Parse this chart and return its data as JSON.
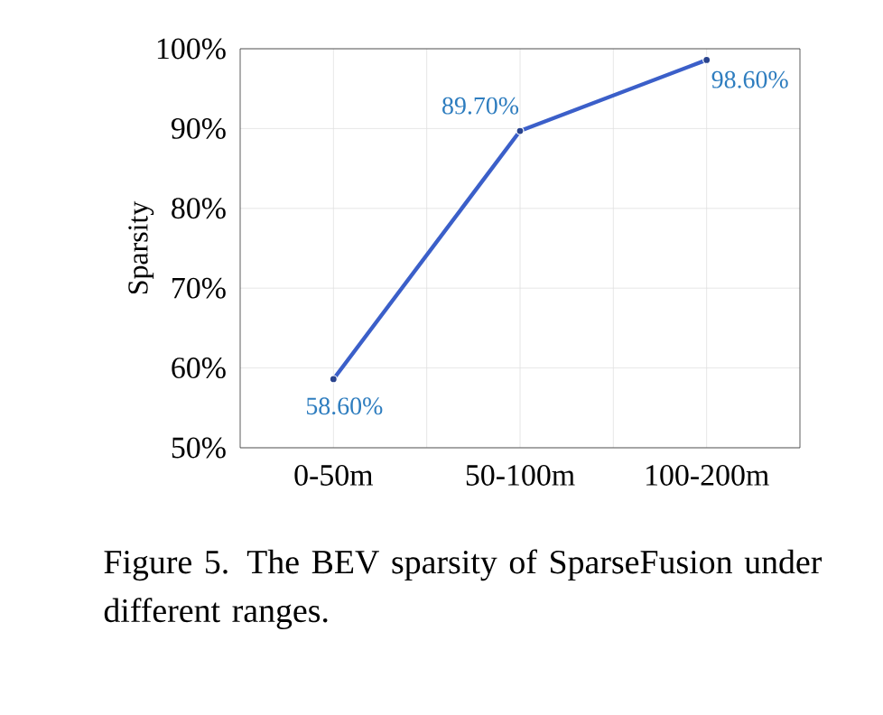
{
  "chart_data": {
    "type": "line",
    "categories": [
      "0-50m",
      "50-100m",
      "100-200m"
    ],
    "series": [
      {
        "color": "#3b5fc9",
        "values": [
          58.6,
          89.7,
          98.6
        ],
        "value_labels": [
          "58.60%",
          "89.70%",
          "98.60%"
        ]
      }
    ],
    "ylabel": "Sparsity",
    "ylim": [
      50,
      100
    ],
    "yticks": [
      {
        "value": 50,
        "label": "50%"
      },
      {
        "value": 60,
        "label": "60%"
      },
      {
        "value": 70,
        "label": "70%"
      },
      {
        "value": 80,
        "label": "80%"
      },
      {
        "value": 90,
        "label": "90%"
      },
      {
        "value": 100,
        "label": "100%"
      }
    ],
    "grid": true,
    "marker": "circle",
    "line_style": "solid",
    "annotations": [
      "Figure 5. The BEV sparsity of SparseFusion under different ranges."
    ]
  }
}
